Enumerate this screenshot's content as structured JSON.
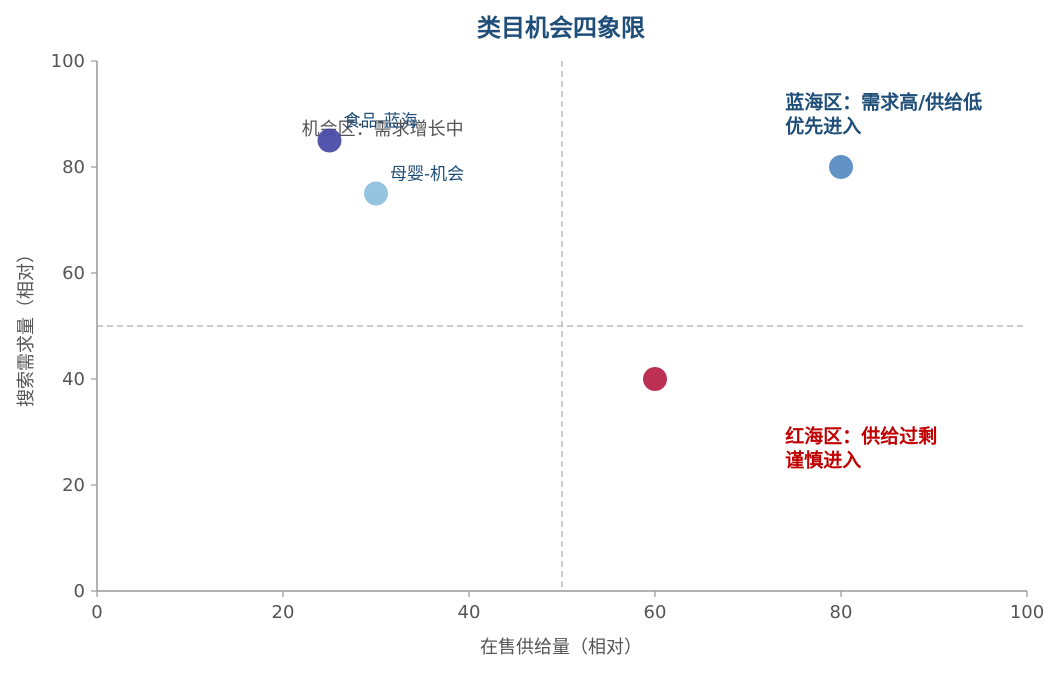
{
  "chart_data": {
    "type": "scatter",
    "title": "类目机会四象限",
    "xlabel": "在售供给量（相对）",
    "ylabel": "搜索需求量（相对）",
    "xlim": [
      0,
      100
    ],
    "ylim": [
      0,
      100
    ],
    "x_ticks": [
      0,
      20,
      40,
      60,
      80,
      100
    ],
    "y_ticks": [
      0,
      20,
      40,
      60,
      80,
      100
    ],
    "grid": false,
    "reference_lines": {
      "x": 50,
      "y": 50
    },
    "points": [
      {
        "label": "食品-蓝海",
        "x": 25,
        "y": 85,
        "color": "#4b4ca8"
      },
      {
        "label": "母婴-机会",
        "x": 30,
        "y": 75,
        "color": "#8fc1df"
      },
      {
        "label": "",
        "x": 80,
        "y": 80,
        "color": "#5b8cc4"
      },
      {
        "label": "",
        "x": 60,
        "y": 40,
        "color": "#b8264a"
      }
    ],
    "annotations": [
      {
        "id": "blue",
        "lines": [
          "蓝海区：需求高/供给低",
          "优先进入"
        ],
        "color": "#1f4e79"
      },
      {
        "id": "red",
        "lines": [
          "红海区：供给过剩",
          "谨慎进入"
        ],
        "color": "#c00000"
      },
      {
        "id": "opportunity",
        "lines": [
          "机会区：需求增长中"
        ],
        "color": "#555555"
      }
    ]
  }
}
